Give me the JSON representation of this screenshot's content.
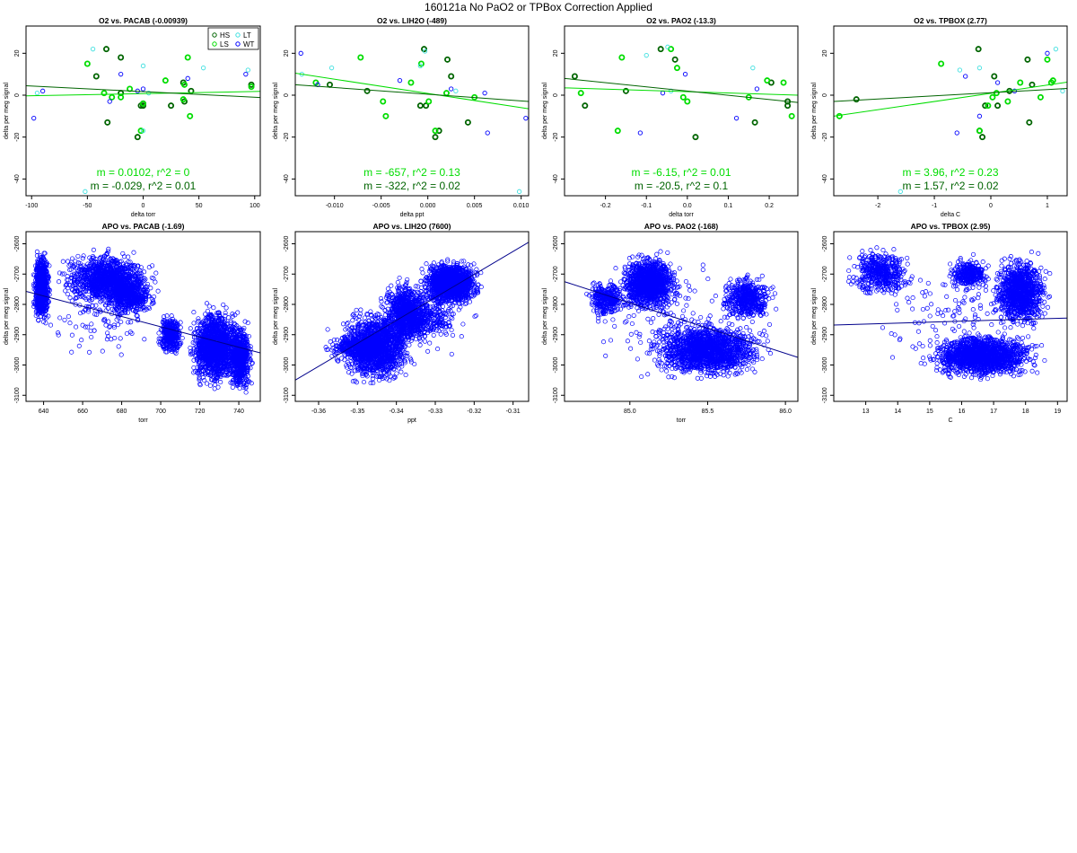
{
  "page": {
    "title": "160121a   No PaO2 or TPBox Correction Applied"
  },
  "colors": {
    "HS": "#006400",
    "LS": "#00dd00",
    "LT": "#40e0e0",
    "WT": "#0000ff",
    "apo_points": "#0000ff",
    "apo_fit": "#00008b",
    "HS_fit": "#006400",
    "LS_fit": "#00dd00"
  },
  "chart_data": [
    {
      "id": "o2-pacab",
      "type": "scatter",
      "title": "O2 vs. PACAB (-0.00939)",
      "xlabel": "delta torr",
      "ylabel": "delta per meg signal",
      "xlim": [
        -105,
        105
      ],
      "ylim": [
        -48,
        33
      ],
      "xticks": [
        "-100",
        "-50",
        "0",
        "50",
        "100"
      ],
      "xtick_values": [
        -100,
        -50,
        0,
        50,
        100
      ],
      "yticks": [
        "-40",
        "-20",
        "0",
        "20"
      ],
      "ytick_values": [
        -40,
        -20,
        0,
        20
      ],
      "legend": {
        "placement": "top-right",
        "entries": [
          "HS",
          "LT",
          "LS",
          "WT"
        ]
      },
      "annotations": [
        "m = 0.0102, r^2 = 0",
        "m = -0.029, r^2 = 0.01"
      ],
      "fits": [
        {
          "group": "LS",
          "x": [
            -105,
            105
          ],
          "y": [
            -0.3,
            1.8
          ]
        },
        {
          "group": "HS",
          "x": [
            -105,
            105
          ],
          "y": [
            4.5,
            -1.1
          ]
        }
      ],
      "series": [
        {
          "group": "HS",
          "x": [
            -33,
            -20,
            -42,
            -32,
            -2,
            0,
            -20,
            43,
            37,
            36,
            25,
            97,
            0,
            -5
          ],
          "y": [
            22,
            18,
            9,
            -13,
            -5,
            -4,
            1,
            2,
            -3,
            6,
            -5,
            5,
            -5,
            -20
          ]
        },
        {
          "group": "LS",
          "x": [
            -50,
            -12,
            -20,
            -28,
            -35,
            20,
            40,
            37,
            42,
            97,
            0,
            -2,
            36
          ],
          "y": [
            15,
            3,
            -1,
            -1,
            1,
            7,
            18,
            5,
            -10,
            4,
            -4,
            -17,
            -2
          ]
        },
        {
          "group": "LT",
          "x": [
            -45,
            0,
            54,
            94,
            -95,
            -52,
            0,
            5
          ],
          "y": [
            22,
            14,
            13,
            12,
            1,
            -46,
            -17,
            1
          ]
        },
        {
          "group": "WT",
          "x": [
            -98,
            -90,
            -20,
            0,
            92,
            40,
            -30,
            -5
          ],
          "y": [
            -11,
            2,
            10,
            3,
            10,
            8,
            -3,
            2
          ]
        }
      ]
    },
    {
      "id": "o2-lih2o",
      "type": "scatter",
      "title": "O2 vs. LIH2O (-489)",
      "xlabel": "delta ppt",
      "ylabel": "delta per meg signal",
      "xlim": [
        -0.0142,
        0.0108
      ],
      "ylim": [
        -48,
        33
      ],
      "xticks": [
        "-0.010",
        "-0.005",
        "0.000",
        "0.005",
        "0.010"
      ],
      "xtick_values": [
        -0.01,
        -0.005,
        0,
        0.005,
        0.01
      ],
      "yticks": [
        "-40",
        "-20",
        "0",
        "20"
      ],
      "ytick_values": [
        -40,
        -20,
        0,
        20
      ],
      "annotations": [
        "m = -657, r^2 = 0.13",
        "m = -322, r^2 = 0.02"
      ],
      "fits": [
        {
          "group": "LS",
          "x": [
            -0.0142,
            0.0108
          ],
          "y": [
            10.5,
            -6.5
          ]
        },
        {
          "group": "HS",
          "x": [
            -0.0142,
            0.0108
          ],
          "y": [
            5.0,
            -3.0
          ]
        }
      ],
      "series": [
        {
          "group": "HS",
          "x": [
            -0.0105,
            -0.0065,
            -0.0004,
            -0.0002,
            0.0021,
            0.0025,
            0.0008,
            0.0012,
            0.0043,
            -0.0008
          ],
          "y": [
            5,
            2,
            22,
            -5,
            17,
            9,
            -20,
            -17,
            -13,
            -5
          ]
        },
        {
          "group": "LS",
          "x": [
            -0.012,
            -0.0045,
            -0.0072,
            -0.0018,
            -0.0007,
            0.002,
            0.005,
            0.0001,
            -0.0048,
            0.0008
          ],
          "y": [
            6,
            -10,
            18,
            6,
            15,
            1,
            -1,
            -3,
            -3,
            -17
          ]
        },
        {
          "group": "LT",
          "x": [
            -0.0135,
            -0.0103,
            -0.0003,
            0.0098,
            -0.0008,
            0.003
          ],
          "y": [
            10,
            13,
            21,
            -46,
            14,
            2
          ]
        },
        {
          "group": "WT",
          "x": [
            -0.0136,
            -0.0118,
            -0.003,
            0.0061,
            0.0064,
            0.0105,
            0.0025
          ],
          "y": [
            20,
            5,
            7,
            1,
            -18,
            -11,
            3
          ]
        }
      ]
    },
    {
      "id": "o2-pao2",
      "type": "scatter",
      "title": "O2 vs. PAO2 (-13.3)",
      "xlabel": "delta torr",
      "ylabel": "delta per meg signal",
      "xlim": [
        -0.3,
        0.27
      ],
      "ylim": [
        -48,
        33
      ],
      "xticks": [
        "-0.2",
        "-0.1",
        "0.0",
        "0.1",
        "0.2"
      ],
      "xtick_values": [
        -0.2,
        -0.1,
        0,
        0.1,
        0.2
      ],
      "yticks": [
        "-40",
        "-20",
        "0",
        "20"
      ],
      "ytick_values": [
        -40,
        -20,
        0,
        20
      ],
      "annotations": [
        "m = -6.15, r^2 = 0.01",
        "m = -20.5, r^2 = 0.1"
      ],
      "fits": [
        {
          "group": "LS",
          "x": [
            -0.3,
            0.27
          ],
          "y": [
            3.5,
            0.0
          ]
        },
        {
          "group": "HS",
          "x": [
            -0.3,
            0.27
          ],
          "y": [
            8.0,
            -3.5
          ]
        }
      ],
      "series": [
        {
          "group": "HS",
          "x": [
            -0.275,
            -0.25,
            -0.15,
            -0.065,
            -0.03,
            0.02,
            0.165,
            0.205,
            0.245,
            0.245
          ],
          "y": [
            9,
            -5,
            2,
            22,
            17,
            -20,
            -13,
            6,
            -3,
            -5
          ]
        },
        {
          "group": "LS",
          "x": [
            -0.26,
            -0.16,
            -0.17,
            -0.04,
            -0.025,
            -0.01,
            0.0,
            0.15,
            0.195,
            0.255,
            0.235
          ],
          "y": [
            1,
            18,
            -17,
            22,
            13,
            -1,
            -3,
            -1,
            7,
            -10,
            6
          ]
        },
        {
          "group": "LT",
          "x": [
            -0.048,
            -0.1,
            0.16,
            -0.04
          ],
          "y": [
            23,
            19,
            13,
            2
          ]
        },
        {
          "group": "WT",
          "x": [
            -0.115,
            -0.005,
            0.12,
            0.17,
            -0.06
          ],
          "y": [
            -18,
            10,
            -11,
            3,
            1
          ]
        }
      ]
    },
    {
      "id": "o2-tpbox",
      "type": "scatter",
      "title": "O2 vs. TPBOX (2.77)",
      "xlabel": "delta C",
      "ylabel": "delta per meg signal",
      "xlim": [
        -2.78,
        1.35
      ],
      "ylim": [
        -48,
        33
      ],
      "xticks": [
        "-2",
        "-1",
        "0",
        "1"
      ],
      "xtick_values": [
        -2,
        -1,
        0,
        1
      ],
      "yticks": [
        "-40",
        "-20",
        "0",
        "20"
      ],
      "ytick_values": [
        -40,
        -20,
        0,
        20
      ],
      "annotations": [
        "m = 3.96, r^2 = 0.23",
        "m = 1.57, r^2 = 0.02"
      ],
      "fits": [
        {
          "group": "LS",
          "x": [
            -2.78,
            1.35
          ],
          "y": [
            -10.0,
            6.2
          ]
        },
        {
          "group": "HS",
          "x": [
            -2.78,
            1.35
          ],
          "y": [
            -3.0,
            3.2
          ]
        }
      ],
      "series": [
        {
          "group": "HS",
          "x": [
            -2.38,
            -0.22,
            -0.1,
            0.06,
            0.12,
            0.33,
            0.65,
            0.73,
            0.68,
            -0.15,
            -0.2
          ],
          "y": [
            -2,
            22,
            -5,
            9,
            -5,
            2,
            17,
            5,
            -13,
            -20,
            -17
          ]
        },
        {
          "group": "LS",
          "x": [
            -2.68,
            -0.88,
            0.03,
            0.1,
            0.3,
            0.52,
            1.0,
            1.07,
            0.88,
            -0.05,
            -0.2,
            1.1
          ],
          "y": [
            -10,
            15,
            -1,
            1,
            -3,
            6,
            17,
            6,
            -1,
            -5,
            -17,
            7
          ]
        },
        {
          "group": "LT",
          "x": [
            -1.6,
            -0.55,
            1.15,
            1.27,
            -0.2
          ],
          "y": [
            -46,
            12,
            22,
            2,
            13
          ]
        },
        {
          "group": "WT",
          "x": [
            -0.45,
            -0.2,
            0.42,
            1.0,
            0.12,
            -0.6
          ],
          "y": [
            9,
            -10,
            2,
            20,
            6,
            -18
          ]
        }
      ]
    },
    {
      "id": "apo-pacab",
      "type": "scatter",
      "title": "APO vs. PACAB (-1.69)",
      "xlabel": "torr",
      "ylabel": "delta per meg signal",
      "xlim": [
        631,
        751
      ],
      "ylim": [
        -3120,
        -2560
      ],
      "xticks": [
        "640",
        "660",
        "680",
        "700",
        "720",
        "740"
      ],
      "xtick_values": [
        640,
        660,
        680,
        700,
        720,
        740
      ],
      "yticks": [
        "-3100",
        "-3000",
        "-2900",
        "-2800",
        "-2700",
        "-2600"
      ],
      "ytick_values": [
        -3100,
        -3000,
        -2900,
        -2800,
        -2700,
        -2600
      ],
      "fits": [
        {
          "group": "APO",
          "x": [
            631,
            751
          ],
          "y": [
            -2757,
            -2960
          ]
        }
      ],
      "clusters": [
        {
          "n": 700,
          "x": [
            634,
            644
          ],
          "y": [
            -2890,
            -2600
          ]
        },
        {
          "n": 1100,
          "x": [
            644,
            700
          ],
          "y": [
            -2820,
            -2610
          ]
        },
        {
          "n": 500,
          "x": [
            668,
            700
          ],
          "y": [
            -2860,
            -2680
          ]
        },
        {
          "n": 350,
          "x": [
            698,
            712
          ],
          "y": [
            -2980,
            -2820
          ]
        },
        {
          "n": 1400,
          "x": [
            712,
            745
          ],
          "y": [
            -3100,
            -2780
          ]
        },
        {
          "n": 600,
          "x": [
            734,
            748
          ],
          "y": [
            -3110,
            -2850
          ]
        },
        {
          "n": 120,
          "x": [
            640,
            700
          ],
          "y": [
            -3020,
            -2600
          ]
        }
      ]
    },
    {
      "id": "apo-lih2o",
      "type": "scatter",
      "title": "APO vs. LIH2O (7600)",
      "xlabel": "ppt",
      "ylabel": "delta per meg signal",
      "xlim": [
        -0.366,
        -0.306
      ],
      "ylim": [
        -3120,
        -2560
      ],
      "xticks": [
        "-0.36",
        "-0.35",
        "-0.34",
        "-0.33",
        "-0.32",
        "-0.31"
      ],
      "xtick_values": [
        -0.36,
        -0.35,
        -0.34,
        -0.33,
        -0.32,
        -0.31
      ],
      "yticks": [
        "-3100",
        "-3000",
        "-2900",
        "-2800",
        "-2700",
        "-2600"
      ],
      "ytick_values": [
        -3100,
        -3000,
        -2900,
        -2800,
        -2700,
        -2600
      ],
      "fits": [
        {
          "group": "APO",
          "x": [
            -0.366,
            -0.306
          ],
          "y": [
            -3050,
            -2595
          ]
        }
      ],
      "clusters": [
        {
          "n": 1400,
          "x": [
            -0.356,
            -0.334
          ],
          "y": [
            -3080,
            -2800
          ]
        },
        {
          "n": 900,
          "x": [
            -0.345,
            -0.33
          ],
          "y": [
            -2960,
            -2700
          ]
        },
        {
          "n": 1400,
          "x": [
            -0.335,
            -0.317
          ],
          "y": [
            -2820,
            -2640
          ]
        },
        {
          "n": 300,
          "x": [
            -0.36,
            -0.34
          ],
          "y": [
            -3000,
            -2880
          ]
        },
        {
          "n": 200,
          "x": [
            -0.34,
            -0.322
          ],
          "y": [
            -2940,
            -2760
          ]
        },
        {
          "n": 60,
          "x": [
            -0.363,
            -0.31
          ],
          "y": [
            -3080,
            -2640
          ]
        }
      ]
    },
    {
      "id": "apo-pao2",
      "type": "scatter",
      "title": "APO vs. PAO2 (-168)",
      "xlabel": "torr",
      "ylabel": "delta per meg signal",
      "xlim": [
        84.58,
        86.08
      ],
      "ylim": [
        -3120,
        -2560
      ],
      "xticks": [
        "85.0",
        "85.5",
        "86.0"
      ],
      "xtick_values": [
        85.0,
        85.5,
        86.0
      ],
      "yticks": [
        "-3100",
        "-3000",
        "-2900",
        "-2800",
        "-2700",
        "-2600"
      ],
      "ytick_values": [
        -3100,
        -3000,
        -2900,
        -2800,
        -2700,
        -2600
      ],
      "fits": [
        {
          "group": "APO",
          "x": [
            84.58,
            86.08
          ],
          "y": [
            -2725,
            -2975
          ]
        }
      ],
      "clusters": [
        {
          "n": 1200,
          "x": [
            84.9,
            85.35
          ],
          "y": [
            -2840,
            -2620
          ]
        },
        {
          "n": 1500,
          "x": [
            85.05,
            85.95
          ],
          "y": [
            -3060,
            -2840
          ]
        },
        {
          "n": 500,
          "x": [
            85.55,
            85.95
          ],
          "y": [
            -2870,
            -2690
          ]
        },
        {
          "n": 300,
          "x": [
            84.7,
            85.0
          ],
          "y": [
            -2860,
            -2700
          ]
        },
        {
          "n": 150,
          "x": [
            84.62,
            86.05
          ],
          "y": [
            -3100,
            -2600
          ]
        }
      ]
    },
    {
      "id": "apo-tpbox",
      "type": "scatter",
      "title": "APO vs. TPBOX (2.95)",
      "xlabel": "C",
      "ylabel": "delta per meg signal",
      "xlim": [
        12.0,
        19.3
      ],
      "ylim": [
        -3120,
        -2560
      ],
      "xticks": [
        "13",
        "14",
        "15",
        "16",
        "17",
        "18",
        "19"
      ],
      "xtick_values": [
        13,
        14,
        15,
        16,
        17,
        18,
        19
      ],
      "yticks": [
        "-3100",
        "-3000",
        "-2900",
        "-2800",
        "-2700",
        "-2600"
      ],
      "ytick_values": [
        -3100,
        -3000,
        -2900,
        -2800,
        -2700,
        -2600
      ],
      "fits": [
        {
          "group": "APO",
          "x": [
            12.0,
            19.3
          ],
          "y": [
            -2868,
            -2845
          ]
        }
      ],
      "clusters": [
        {
          "n": 450,
          "x": [
            12.3,
            14.6
          ],
          "y": [
            -2790,
            -2600
          ]
        },
        {
          "n": 1500,
          "x": [
            14.6,
            18.8
          ],
          "y": [
            -3060,
            -2880
          ]
        },
        {
          "n": 1000,
          "x": [
            16.8,
            18.9
          ],
          "y": [
            -2900,
            -2620
          ]
        },
        {
          "n": 300,
          "x": [
            15.5,
            17.0
          ],
          "y": [
            -2760,
            -2640
          ]
        },
        {
          "n": 120,
          "x": [
            12.5,
            19.0
          ],
          "y": [
            -3100,
            -2600
          ]
        }
      ]
    }
  ]
}
